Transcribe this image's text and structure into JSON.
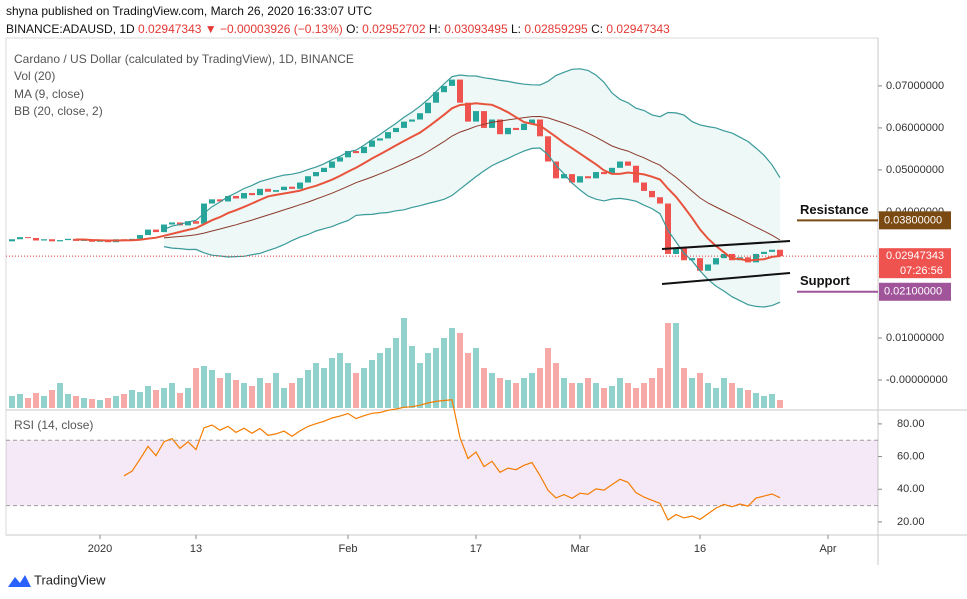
{
  "chart_data": {
    "type": "candlestick",
    "publisher": "shyna published on TradingView.com, March 26, 2020 16:33:07 UTC",
    "quote": {
      "symbol": "BINANCE:ADAUSD, 1D",
      "change": "0.02947343 ▼ −0.00003926 (−0.13%)",
      "ohlc": [
        {
          "key": "O:",
          "value": "0.02952702"
        },
        {
          "key": "H:",
          "value": "0.03093495"
        },
        {
          "key": "L:",
          "value": "0.02859295"
        },
        {
          "key": "C:",
          "value": "0.02947343"
        }
      ]
    },
    "title": "Cardano / US Dollar (calculated by TradingView), 1D, BINANCE",
    "indicators": [
      "Vol (20)",
      "MA (9, close)",
      "BB (20, close, 2)"
    ],
    "rsi_title": "RSI (14, close)",
    "up_color": "#26a69a",
    "down_color": "#ef5350",
    "categories": [
      null,
      null,
      null,
      null,
      null,
      null,
      null,
      null,
      null,
      null,
      null,
      "2020",
      null,
      null,
      null,
      null,
      null,
      null,
      null,
      null,
      null,
      null,
      null,
      "13",
      null,
      null,
      null,
      null,
      null,
      null,
      null,
      null,
      null,
      null,
      null,
      null,
      null,
      null,
      null,
      null,
      null,
      null,
      "Feb",
      null,
      null,
      null,
      null,
      null,
      null,
      null,
      null,
      null,
      null,
      null,
      null,
      null,
      null,
      null,
      "17",
      null,
      null,
      null,
      null,
      null,
      null,
      null,
      null,
      null,
      null,
      null,
      null,
      "Mar",
      null,
      null,
      null,
      null,
      null,
      null,
      null,
      null,
      null,
      null,
      null,
      null,
      null,
      null,
      "16",
      null,
      null,
      null,
      null,
      null,
      null,
      null,
      null,
      null,
      null,
      null,
      null,
      null,
      null,
      null,
      "Apr"
    ],
    "open": 0.033,
    "close": [
      0.0335,
      0.034,
      0.0338,
      0.0332,
      0.0335,
      0.033,
      0.0333,
      0.0336,
      0.0331,
      0.0334,
      0.0329,
      0.0332,
      0.0328,
      0.0335,
      0.0333,
      0.0336,
      0.0345,
      0.0358,
      0.0352,
      0.037,
      0.0375,
      0.0368,
      0.0378,
      0.0372,
      0.042,
      0.043,
      0.0425,
      0.0438,
      0.0432,
      0.0445,
      0.044,
      0.0455,
      0.0448,
      0.0452,
      0.046,
      0.0455,
      0.047,
      0.0485,
      0.0495,
      0.0505,
      0.052,
      0.053,
      0.0545,
      0.054,
      0.0555,
      0.057,
      0.0575,
      0.059,
      0.06,
      0.0615,
      0.062,
      0.0635,
      0.066,
      0.0685,
      0.07,
      0.0715,
      0.066,
      0.0615,
      0.064,
      0.06,
      0.062,
      0.0585,
      0.06,
      0.0595,
      0.061,
      0.062,
      0.058,
      0.052,
      0.048,
      0.049,
      0.047,
      0.0485,
      0.048,
      0.0495,
      0.049,
      0.0505,
      0.052,
      0.051,
      0.047,
      0.045,
      0.0435,
      0.042,
      0.03,
      0.0315,
      0.0285,
      0.029,
      0.026,
      0.0275,
      0.029,
      0.03,
      0.0285,
      0.0292,
      0.028,
      0.03,
      0.0305,
      0.031,
      0.02947343,
      null,
      null,
      null,
      null,
      null,
      null
    ],
    "volume": [
      12,
      14,
      10,
      15,
      12,
      18,
      25,
      14,
      12,
      10,
      9,
      8,
      10,
      12,
      14,
      18,
      16,
      22,
      18,
      20,
      25,
      15,
      20,
      40,
      42,
      38,
      30,
      35,
      28,
      25,
      22,
      30,
      25,
      35,
      20,
      25,
      30,
      38,
      45,
      40,
      50,
      55,
      45,
      35,
      40,
      48,
      55,
      60,
      70,
      90,
      62,
      45,
      55,
      60,
      70,
      80,
      75,
      55,
      60,
      40,
      35,
      30,
      28,
      25,
      30,
      35,
      40,
      60,
      45,
      30,
      25,
      25,
      30,
      25,
      20,
      22,
      30,
      25,
      20,
      25,
      30,
      40,
      85,
      85,
      40,
      30,
      35,
      25,
      20,
      30,
      25,
      20,
      18,
      15,
      12,
      14,
      8,
      null,
      null,
      null,
      null,
      null,
      null
    ],
    "ylim": [
      -0.00714,
      0.0814
    ],
    "yticks": [
      {
        "value": 0.07,
        "label": "0.07000000"
      },
      {
        "value": 0.06,
        "label": "0.06000000"
      },
      {
        "value": 0.05,
        "label": "0.05000000"
      },
      {
        "value": 0.04,
        "label": "0.04000000"
      },
      {
        "value": 0.01,
        "label": "0.01000000"
      },
      {
        "value": 0,
        "label": "-0.00000000"
      }
    ],
    "last_price": 0.02947343,
    "countdown": "07:26:56",
    "levels": [
      {
        "name": "Resistance",
        "value": 0.038,
        "label": "0.03800000",
        "color": "#7b4a13"
      },
      {
        "name": "Support",
        "value": 0.021,
        "label": "0.02100000",
        "color": "#a0559b"
      }
    ],
    "rsi_ylim": [
      12,
      88.5
    ],
    "rsi_yticks": [
      {
        "value": 80,
        "label": "80.00"
      },
      {
        "value": 60,
        "label": "60.00"
      },
      {
        "value": 40,
        "label": "40.00"
      },
      {
        "value": 20,
        "label": "20.00"
      }
    ],
    "rsi_band": [
      30,
      70
    ],
    "rsi_color": "#f57c00",
    "brand": "TradingView"
  }
}
